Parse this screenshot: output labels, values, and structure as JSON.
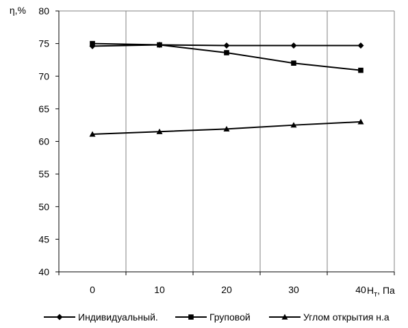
{
  "chart_data": {
    "type": "line",
    "title": "",
    "ylabel": "η,%",
    "xlabel": "Hт, Па",
    "xlabel_main": "H",
    "xlabel_sub": "т",
    "xlabel_rest": ", Па",
    "categories": [
      "0",
      "10",
      "20",
      "30",
      "40"
    ],
    "x": [
      0,
      10,
      20,
      30,
      40
    ],
    "ylim": [
      40,
      80
    ],
    "yticks": [
      40,
      45,
      50,
      55,
      60,
      65,
      70,
      75,
      80
    ],
    "grid": "vertical",
    "legend": "bottom",
    "series": [
      {
        "name": "Индивидуальный.",
        "marker": "diamond",
        "values": [
          74.6,
          74.8,
          74.7,
          74.7,
          74.7
        ]
      },
      {
        "name": "Груповой",
        "marker": "square",
        "values": [
          75.0,
          74.8,
          73.6,
          72.0,
          70.9
        ]
      },
      {
        "name": "Углом открытия н.а",
        "marker": "triangle",
        "values": [
          61.1,
          61.5,
          61.9,
          62.5,
          63.0
        ]
      }
    ],
    "colors": {
      "series": "#000000",
      "grid": "#808080",
      "axis": "#000000"
    }
  }
}
